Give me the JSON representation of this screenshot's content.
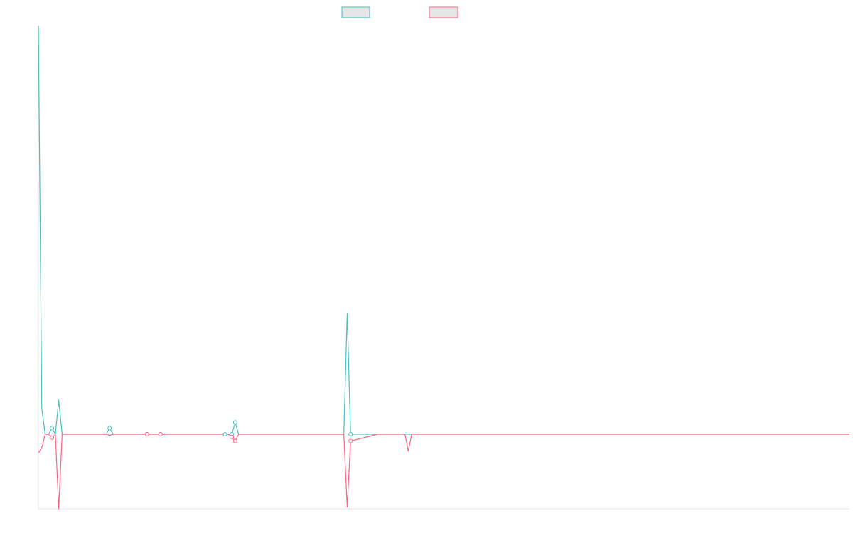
{
  "chart_data": {
    "type": "line",
    "title": "",
    "xlabel": "",
    "ylabel": "",
    "grid": false,
    "legend_position": "top-center",
    "ylim": [
      -22,
      120
    ],
    "series": [
      {
        "color": "#4bc0c0",
        "points": [
          [
            0,
            120
          ],
          [
            1,
            7.5
          ],
          [
            2,
            0
          ],
          [
            3,
            0
          ],
          [
            4,
            1.8
          ],
          [
            5,
            0
          ],
          [
            6,
            10
          ],
          [
            7,
            0
          ],
          [
            8,
            0
          ],
          [
            9,
            0
          ],
          [
            10,
            0
          ],
          [
            15,
            0
          ],
          [
            16,
            0
          ],
          [
            20,
            0
          ],
          [
            21,
            1.8
          ],
          [
            22,
            0
          ],
          [
            23,
            0
          ],
          [
            25,
            0
          ],
          [
            30,
            0
          ],
          [
            31,
            0
          ],
          [
            32,
            0
          ],
          [
            34,
            0
          ],
          [
            35,
            0
          ],
          [
            36,
            0
          ],
          [
            40,
            0
          ],
          [
            50,
            0
          ],
          [
            55,
            0
          ],
          [
            56,
            0
          ],
          [
            57,
            0
          ],
          [
            58,
            3.5
          ],
          [
            59,
            0
          ],
          [
            60,
            0
          ],
          [
            70,
            0
          ],
          [
            85,
            0
          ],
          [
            90,
            0
          ],
          [
            91,
            35.5
          ],
          [
            92,
            0
          ],
          [
            100,
            0
          ],
          [
            108,
            0
          ],
          [
            109,
            0
          ],
          [
            110,
            0
          ],
          [
            150,
            0
          ],
          [
            200,
            0
          ],
          [
            239,
            0
          ]
        ]
      },
      {
        "color": "#ff6384",
        "points": [
          [
            0,
            -5.5
          ],
          [
            1,
            -4
          ],
          [
            2,
            0
          ],
          [
            3,
            0
          ],
          [
            4,
            -1
          ],
          [
            5,
            0
          ],
          [
            6,
            -22
          ],
          [
            7,
            0
          ],
          [
            8,
            0
          ],
          [
            9,
            0
          ],
          [
            10,
            0
          ],
          [
            15,
            0
          ],
          [
            16,
            0
          ],
          [
            20,
            0
          ],
          [
            21,
            -0.3
          ],
          [
            22,
            0
          ],
          [
            23,
            0
          ],
          [
            25,
            0
          ],
          [
            30,
            0
          ],
          [
            31,
            0
          ],
          [
            32,
            0
          ],
          [
            34,
            0
          ],
          [
            35,
            0
          ],
          [
            36,
            0
          ],
          [
            40,
            0
          ],
          [
            50,
            0
          ],
          [
            55,
            0
          ],
          [
            56,
            0
          ],
          [
            57,
            -0.8
          ],
          [
            58,
            -2
          ],
          [
            59,
            0
          ],
          [
            60,
            0
          ],
          [
            70,
            0
          ],
          [
            85,
            0
          ],
          [
            90,
            0
          ],
          [
            91,
            -21.5
          ],
          [
            92,
            -2
          ],
          [
            100,
            0
          ],
          [
            108,
            0
          ],
          [
            109,
            -5
          ],
          [
            110,
            0
          ],
          [
            150,
            0
          ],
          [
            200,
            0
          ],
          [
            239,
            0
          ]
        ]
      }
    ],
    "markers": [
      {
        "series": 0,
        "x": 4
      },
      {
        "series": 0,
        "x": 21
      },
      {
        "series": 0,
        "x": 32
      },
      {
        "series": 0,
        "x": 36
      },
      {
        "series": 0,
        "x": 55
      },
      {
        "series": 0,
        "x": 57
      },
      {
        "series": 0,
        "x": 58
      },
      {
        "series": 0,
        "x": 92
      },
      {
        "series": 1,
        "x": 4
      },
      {
        "series": 1,
        "x": 32
      },
      {
        "series": 1,
        "x": 36
      },
      {
        "series": 1,
        "x": 57
      },
      {
        "series": 1,
        "x": 58
      },
      {
        "series": 1,
        "x": 92
      }
    ]
  }
}
